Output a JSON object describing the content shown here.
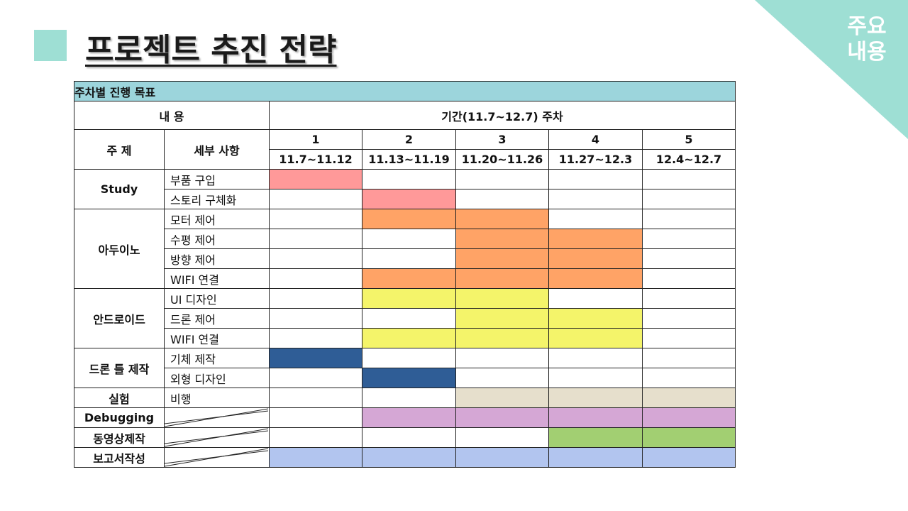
{
  "corner": {
    "line1": "주요",
    "line2": "내용"
  },
  "title": "프로젝트 추진 전략",
  "table": {
    "caption": "주차별 진행 목표",
    "content_header": "내  용",
    "period_header": "기간(11.7~12.7) 주차",
    "topic_header": "주  제",
    "detail_header": "세부 사항",
    "weeks": [
      {
        "num": "1",
        "range": "11.7~11.12"
      },
      {
        "num": "2",
        "range": "11.13~11.19"
      },
      {
        "num": "3",
        "range": "11.20~11.26"
      },
      {
        "num": "4",
        "range": "11.27~12.3"
      },
      {
        "num": "5",
        "range": "12.4~12.7"
      }
    ],
    "colors": {
      "pink": "#ff9999",
      "orange": "#ffa366",
      "yellow": "#f4f46a",
      "navy": "#2f5d96",
      "beige": "#e6dfcc",
      "purple": "#d5a7d5",
      "green": "#a2cf72",
      "blue": "#b2c5ef"
    },
    "rows": [
      {
        "topic": "Study",
        "detail": "부품 구입",
        "bars": [
          "pink",
          "",
          "",
          "",
          ""
        ]
      },
      {
        "topic": "",
        "detail": "스토리 구체화",
        "bars": [
          "",
          "pink",
          "",
          "",
          ""
        ]
      },
      {
        "topic": "아두이노",
        "detail": "모터 제어",
        "bars": [
          "",
          "orange",
          "orange",
          "",
          ""
        ]
      },
      {
        "topic": "",
        "detail": "수평 제어",
        "bars": [
          "",
          "",
          "orange",
          "orange",
          ""
        ]
      },
      {
        "topic": "",
        "detail": "방향 제어",
        "bars": [
          "",
          "",
          "orange",
          "orange",
          ""
        ]
      },
      {
        "topic": "",
        "detail": "WIFI 연결",
        "bars": [
          "",
          "orange",
          "orange",
          "orange",
          ""
        ]
      },
      {
        "topic": "안드로이드",
        "detail": "UI 디자인",
        "bars": [
          "",
          "yellow",
          "yellow",
          "",
          ""
        ]
      },
      {
        "topic": "",
        "detail": "드론 제어",
        "bars": [
          "",
          "",
          "yellow",
          "yellow",
          ""
        ]
      },
      {
        "topic": "",
        "detail": "WIFI 연결",
        "bars": [
          "",
          "yellow",
          "yellow",
          "yellow",
          ""
        ]
      },
      {
        "topic": "드론 틀 제작",
        "detail": "기체 제작",
        "bars": [
          "navy",
          "",
          "",
          "",
          ""
        ]
      },
      {
        "topic": "",
        "detail": "외형 디자인",
        "bars": [
          "",
          "navy",
          "",
          "",
          ""
        ]
      },
      {
        "topic": "실험",
        "detail": "비행",
        "bars": [
          "",
          "",
          "beige",
          "beige",
          "beige"
        ]
      },
      {
        "topic": "Debugging",
        "detail": "",
        "bars": [
          "",
          "purple",
          "purple",
          "purple",
          "purple"
        ]
      },
      {
        "topic": "동영상제작",
        "detail": "",
        "bars": [
          "",
          "",
          "",
          "green",
          "green"
        ]
      },
      {
        "topic": "보고서작성",
        "detail": "",
        "bars": [
          "blue",
          "blue",
          "blue",
          "blue",
          "blue"
        ]
      }
    ]
  }
}
